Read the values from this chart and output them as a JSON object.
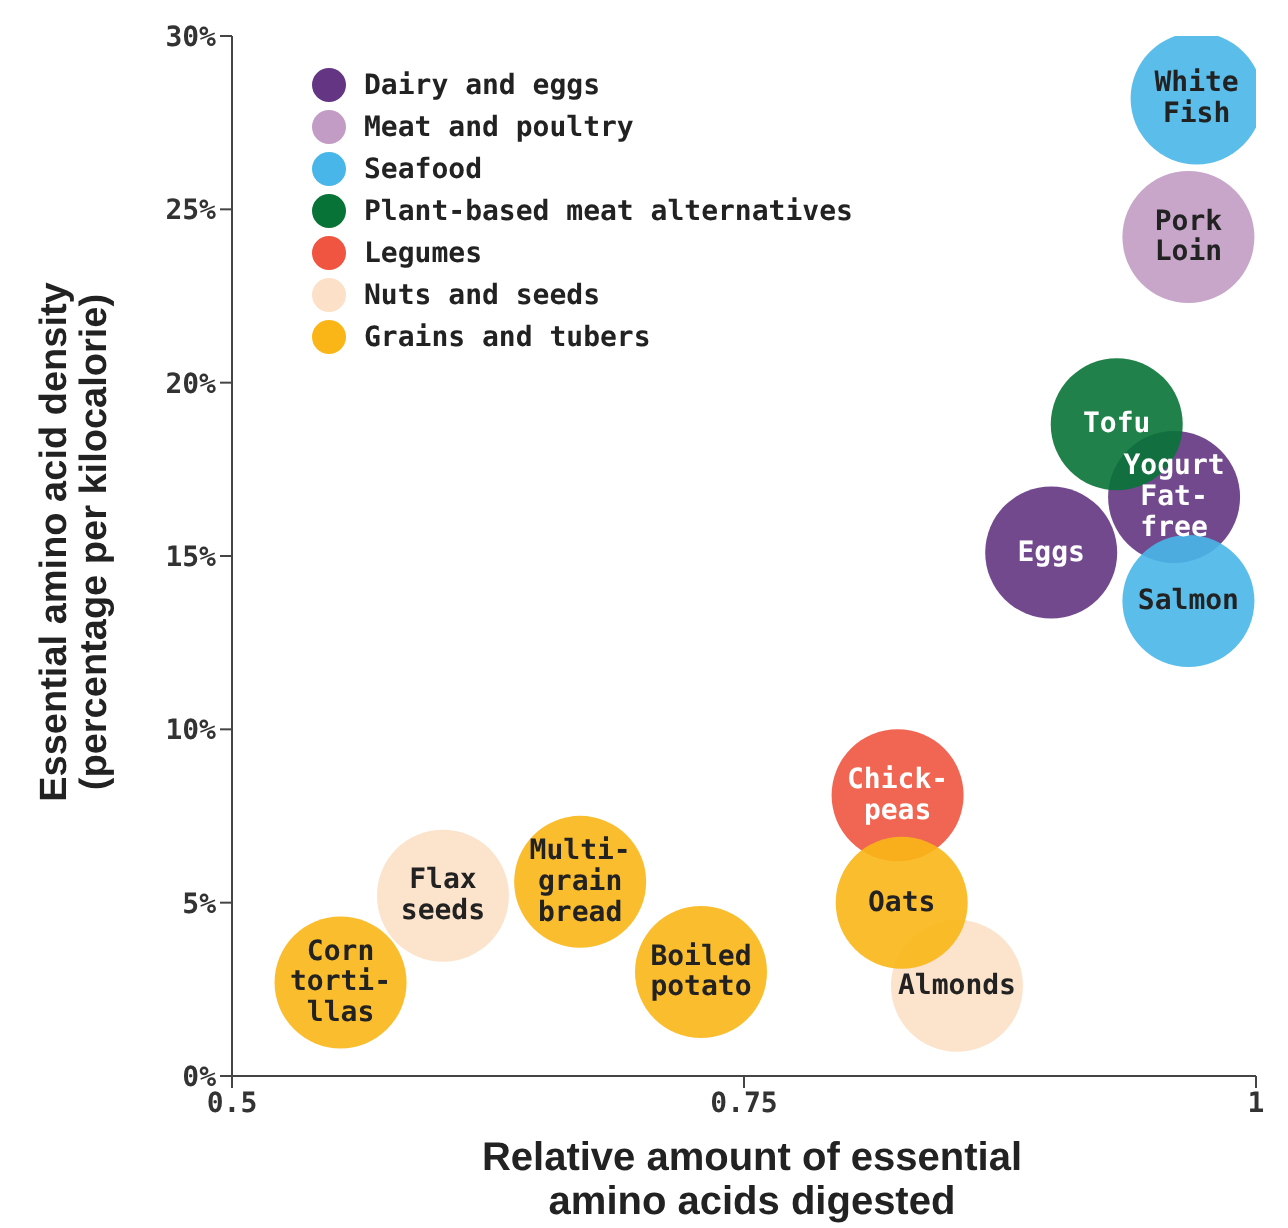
{
  "chart_data": {
    "type": "scatter",
    "xlabel": "Relative amount of essential\namino acids digested",
    "ylabel": "Essential amino acid density\n(percentage per kilocalorie)",
    "xlim": [
      0.5,
      1
    ],
    "xticks": [
      0.5,
      0.75,
      1
    ],
    "ylim": [
      0,
      30
    ],
    "yticks": [
      {
        "value": 0,
        "label": "0%"
      },
      {
        "value": 5,
        "label": "5%"
      },
      {
        "value": 10,
        "label": "10%"
      },
      {
        "value": 15,
        "label": "15%"
      },
      {
        "value": 20,
        "label": "20%"
      },
      {
        "value": 25,
        "label": "25%"
      },
      {
        "value": 30,
        "label": "30%"
      }
    ],
    "grid": false,
    "legend": "top left",
    "marker": "circle",
    "series": [
      {
        "name": "Dairy and eggs",
        "color": "#643582",
        "x": [
          0.96,
          0.9
        ],
        "values": [
          16.7,
          15.1
        ]
      },
      {
        "name": "Meat and poultry",
        "color": "#c29cc4",
        "x": [
          0.967
        ],
        "values": [
          24.2
        ]
      },
      {
        "name": "Seafood",
        "color": "#48b6e8",
        "x": [
          0.971,
          0.967
        ],
        "values": [
          28.2,
          13.7
        ]
      },
      {
        "name": "Plant-based meat alternatives",
        "color": "#087337",
        "x": [
          0.932
        ],
        "values": [
          18.8
        ]
      },
      {
        "name": "Legumes",
        "color": "#ef5540",
        "x": [
          0.825
        ],
        "values": [
          8.1
        ]
      },
      {
        "name": "Nuts and seeds",
        "color": "#fce0c7",
        "x": [
          0.603,
          0.854
        ],
        "values": [
          5.2,
          2.6
        ]
      },
      {
        "name": "Grains and tubers",
        "color": "#fab616",
        "x": [
          0.553,
          0.67,
          0.729,
          0.827
        ],
        "values": [
          2.7,
          5.6,
          3.0,
          5.0
        ]
      }
    ],
    "annotations": [
      {
        "text": "White\nFish",
        "x": 0.971,
        "y": 28.2
      },
      {
        "text": "Pork\nLoin",
        "x": 0.967,
        "y": 24.2
      },
      {
        "text": "Tofu",
        "x": 0.932,
        "y": 18.8
      },
      {
        "text": "Yogurt\nFat-\nfree",
        "x": 0.96,
        "y": 16.7
      },
      {
        "text": "Eggs",
        "x": 0.9,
        "y": 15.1
      },
      {
        "text": "Salmon",
        "x": 0.967,
        "y": 13.7
      },
      {
        "text": "Chick-\npeas",
        "x": 0.825,
        "y": 8.1
      },
      {
        "text": "Oats",
        "x": 0.827,
        "y": 5.0
      },
      {
        "text": "Almonds",
        "x": 0.854,
        "y": 2.6
      },
      {
        "text": "Flax\nseeds",
        "x": 0.603,
        "y": 5.2
      },
      {
        "text": "Multi-\ngrain\nbread",
        "x": 0.67,
        "y": 5.6
      },
      {
        "text": "Boiled\npotato",
        "x": 0.729,
        "y": 3.0
      },
      {
        "text": "Corn\ntorti-\nllas",
        "x": 0.553,
        "y": 2.7
      }
    ]
  }
}
